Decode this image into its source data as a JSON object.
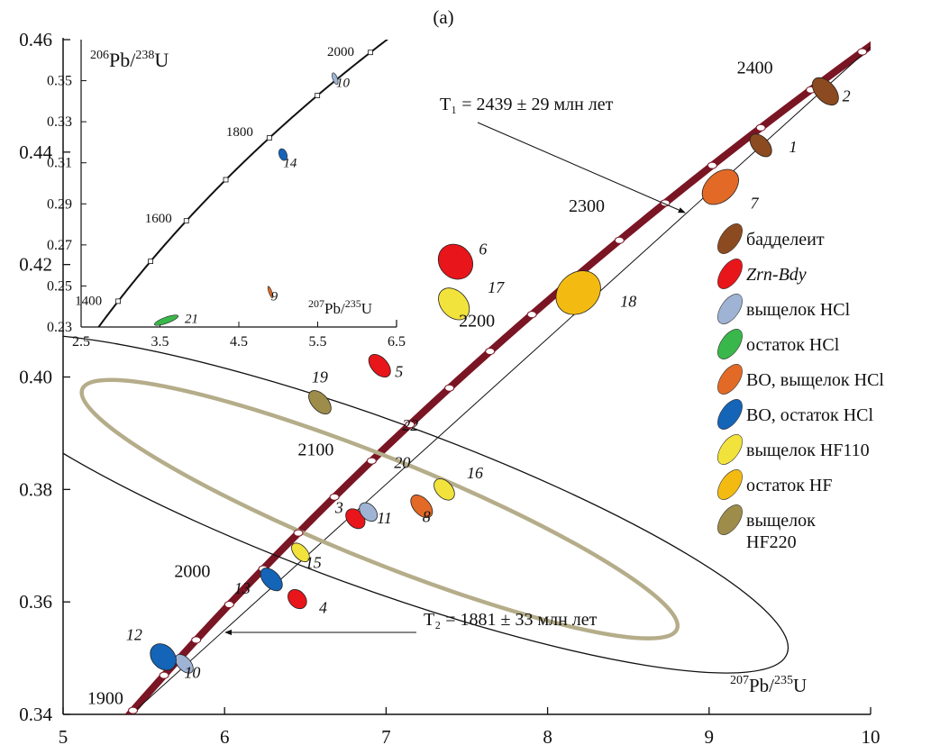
{
  "chart_data": {
    "type": "scatter",
    "panel_label": "(a)",
    "x_axis": {
      "title_html": "207Pb/235U",
      "title_pre": "207",
      "title_mid": "Pb/",
      "title_sup2": "235",
      "title_post": "U",
      "range": [
        5,
        10
      ],
      "ticks": [
        5,
        6,
        7,
        8,
        9,
        10
      ],
      "tick_labels": [
        "5",
        "6",
        "7",
        "8",
        "9",
        "10"
      ]
    },
    "y_axis": {
      "range": [
        0.34,
        0.46
      ],
      "ticks": [
        0.34,
        0.36,
        0.38,
        0.4,
        0.42,
        0.44,
        0.46
      ],
      "tick_labels": [
        "0.34",
        "0.36",
        "0.38",
        "0.40",
        "0.42",
        "0.44",
        "0.46"
      ]
    },
    "concordia": {
      "age_ticks": [
        1900,
        2000,
        2100,
        2200,
        2300,
        2400
      ],
      "age_labels": [
        "1900",
        "2000",
        "2100",
        "2200",
        "2300",
        "2400"
      ],
      "age_dots": [
        1890,
        1920,
        1950,
        1980,
        2010,
        2040,
        2070,
        2100,
        2130,
        2160,
        2190,
        2220,
        2250,
        2280,
        2310,
        2340,
        2370,
        2400,
        2430
      ]
    },
    "discordia": {
      "upper_age": 2439,
      "lower_age": 1881
    },
    "annotations": {
      "t1": "T₁ = 2439 ± 29 млн лет",
      "t2": "T₂ = 1881 ± 33 млн лет"
    },
    "points": [
      {
        "id": "1",
        "x": 9.32,
        "y": 0.4412,
        "rx": 0.05,
        "ry": 0.0024,
        "type": "baddeleyite"
      },
      {
        "id": "2",
        "x": 9.72,
        "y": 0.4508,
        "rx": 0.06,
        "ry": 0.0029,
        "type": "baddeleyite"
      },
      {
        "id": "3",
        "x": 6.81,
        "y": 0.3748,
        "rx": 0.05,
        "ry": 0.002,
        "type": "zrn_bdy"
      },
      {
        "id": "4",
        "x": 6.45,
        "y": 0.3605,
        "rx": 0.05,
        "ry": 0.0019,
        "type": "zrn_bdy"
      },
      {
        "id": "5",
        "x": 6.96,
        "y": 0.402,
        "rx": 0.05,
        "ry": 0.0024,
        "type": "zrn_bdy"
      },
      {
        "id": "6",
        "x": 7.43,
        "y": 0.4205,
        "rx": 0.1,
        "ry": 0.0033,
        "type": "zrn_bdy"
      },
      {
        "id": "7",
        "x": 9.07,
        "y": 0.4338,
        "rx": 0.13,
        "ry": 0.0025,
        "type": "bo_leach_hcl"
      },
      {
        "id": "8",
        "x": 7.22,
        "y": 0.377,
        "rx": 0.05,
        "ry": 0.0024,
        "type": "bo_leach_hcl"
      },
      {
        "id": "10",
        "x": 5.75,
        "y": 0.349,
        "rx": 0.04,
        "ry": 0.002,
        "type": "leach_hcl"
      },
      {
        "id": "11",
        "x": 6.89,
        "y": 0.376,
        "rx": 0.045,
        "ry": 0.0019,
        "type": "leach_hcl"
      },
      {
        "id": "12",
        "x": 5.62,
        "y": 0.3502,
        "rx": 0.07,
        "ry": 0.0026,
        "type": "bo_residue_hcl"
      },
      {
        "id": "13",
        "x": 6.29,
        "y": 0.364,
        "rx": 0.05,
        "ry": 0.0024,
        "type": "bo_residue_hcl"
      },
      {
        "id": "15",
        "x": 6.47,
        "y": 0.3688,
        "rx": 0.04,
        "ry": 0.002,
        "type": "leach_hf110"
      },
      {
        "id": "16",
        "x": 7.36,
        "y": 0.38,
        "rx": 0.05,
        "ry": 0.0022,
        "type": "leach_hf110"
      },
      {
        "id": "17",
        "x": 7.42,
        "y": 0.413,
        "rx": 0.08,
        "ry": 0.0032,
        "type": "leach_hf110"
      },
      {
        "id": "18",
        "x": 8.19,
        "y": 0.415,
        "rx": 0.15,
        "ry": 0.0035,
        "type": "residue_hf"
      },
      {
        "id": "19",
        "x": 6.59,
        "y": 0.3955,
        "rx": 0.05,
        "ry": 0.0025,
        "type": "leach_hf220"
      }
    ],
    "point_labels_pos": [
      {
        "id": "1",
        "lx": 9.52,
        "ly": 0.44
      },
      {
        "id": "2",
        "lx": 9.85,
        "ly": 0.449
      },
      {
        "id": "3",
        "lx": 6.71,
        "ly": 0.3758
      },
      {
        "id": "4",
        "lx": 6.61,
        "ly": 0.358
      },
      {
        "id": "5",
        "lx": 7.08,
        "ly": 0.4
      },
      {
        "id": "6",
        "lx": 7.6,
        "ly": 0.4218
      },
      {
        "id": "7",
        "lx": 9.28,
        "ly": 0.43
      },
      {
        "id": "8",
        "lx": 7.25,
        "ly": 0.3742
      },
      {
        "id": "10",
        "lx": 5.8,
        "ly": 0.3465
      },
      {
        "id": "11",
        "lx": 6.99,
        "ly": 0.374
      },
      {
        "id": "12",
        "lx": 5.44,
        "ly": 0.3532
      },
      {
        "id": "13",
        "lx": 6.11,
        "ly": 0.3615
      },
      {
        "id": "15",
        "lx": 6.55,
        "ly": 0.366
      },
      {
        "id": "16",
        "lx": 7.55,
        "ly": 0.382
      },
      {
        "id": "17",
        "lx": 7.68,
        "ly": 0.415
      },
      {
        "id": "18",
        "lx": 8.5,
        "ly": 0.4125
      },
      {
        "id": "19",
        "lx": 6.59,
        "ly": 0.399
      },
      {
        "id": "20",
        "lx": 7.1,
        "ly": 0.3838
      },
      {
        "id": "22",
        "lx": 7.15,
        "ly": 0.3905
      }
    ],
    "large_ellipses": [
      {
        "id": "22",
        "x": 6.93,
        "y": 0.3775,
        "rx": 0.52,
        "ry": 0.013,
        "angle": 70,
        "stroke": "#111111",
        "width": 1.3
      },
      {
        "id": "20",
        "x": 6.96,
        "y": 0.3765,
        "rx": 0.32,
        "ry": 0.0095,
        "angle": 68,
        "stroke": "#b5ad8a",
        "width": 4.5
      }
    ],
    "legend": [
      {
        "key": "baddeleyite",
        "label": "бадделеит",
        "color": "#8b4a1f",
        "italic": false
      },
      {
        "key": "zrn_bdy",
        "label": "Zrn-Bdy",
        "color": "#e8151a",
        "italic": true
      },
      {
        "key": "leach_hcl",
        "label": "выщелок HCl",
        "color": "#9fb3d4",
        "italic": false
      },
      {
        "key": "residue_hcl",
        "label": "остаток HCl",
        "color": "#3ab74a",
        "italic": false
      },
      {
        "key": "bo_leach_hcl",
        "label": "ВО, выщелок HCl",
        "color": "#e26a26",
        "italic": false
      },
      {
        "key": "bo_residue_hcl",
        "label": "ВО, остаток HCl",
        "color": "#1464b8",
        "italic": false
      },
      {
        "key": "leach_hf110",
        "label": "выщелок HF110",
        "color": "#f2e23c",
        "italic": false
      },
      {
        "key": "residue_hf",
        "label": "остаток HF",
        "color": "#f3bb12",
        "italic": false
      },
      {
        "key": "leach_hf220",
        "label": "выщелок\nHF220",
        "color": "#9e8c4a",
        "italic": false
      }
    ],
    "inset": {
      "x_axis": {
        "range": [
          2.5,
          6.5
        ],
        "ticks": [
          2.5,
          3.5,
          4.5,
          5.5,
          6.5
        ],
        "tick_labels": [
          "2.5",
          "3.5",
          "4.5",
          "5.5",
          "6.5"
        ],
        "title_pre": "207",
        "title_mid": "Pb/",
        "title_sup2": "235",
        "title_post": "U"
      },
      "y_axis": {
        "range": [
          0.23,
          0.37
        ],
        "ticks": [
          0.23,
          0.25,
          0.27,
          0.29,
          0.31,
          0.33,
          0.35
        ],
        "tick_labels": [
          "0.23",
          "0.25",
          "0.27",
          "0.29",
          "0.31",
          "0.33",
          "0.35"
        ],
        "title_pre": "206",
        "title_mid": "Pb/",
        "title_sup2": "238",
        "title_post": "U"
      },
      "age_ticks": [
        1400,
        1500,
        1600,
        1700,
        1800,
        1900,
        2000
      ],
      "age_labels": [
        {
          "age": 1400,
          "label": "1400"
        },
        {
          "age": 1600,
          "label": "1600"
        },
        {
          "age": 1800,
          "label": "1800"
        },
        {
          "age": 2000,
          "label": "2000"
        }
      ],
      "points": [
        {
          "id": "10",
          "x": 5.72,
          "y": 0.351,
          "rx": 0.03,
          "ry": 0.003,
          "type": "leach_hcl"
        },
        {
          "id": "14",
          "x": 5.06,
          "y": 0.314,
          "rx": 0.05,
          "ry": 0.003,
          "type": "bo_residue_hcl"
        },
        {
          "id": "9",
          "x": 4.9,
          "y": 0.247,
          "rx": 0.02,
          "ry": 0.003,
          "type": "bo_leach_hcl"
        },
        {
          "id": "21",
          "x": 3.58,
          "y": 0.2333,
          "rx": 0.16,
          "ry": 0.0015,
          "type": "residue_hcl"
        }
      ],
      "point_labels": [
        {
          "id": "10",
          "lx": 5.82,
          "ly": 0.347
        },
        {
          "id": "14",
          "lx": 5.15,
          "ly": 0.308
        },
        {
          "id": "9",
          "lx": 4.95,
          "ly": 0.243
        },
        {
          "id": "21",
          "lx": 3.9,
          "ly": 0.232
        }
      ]
    }
  },
  "colors": {
    "concordia": "#7a1524",
    "axis": "#111111"
  }
}
